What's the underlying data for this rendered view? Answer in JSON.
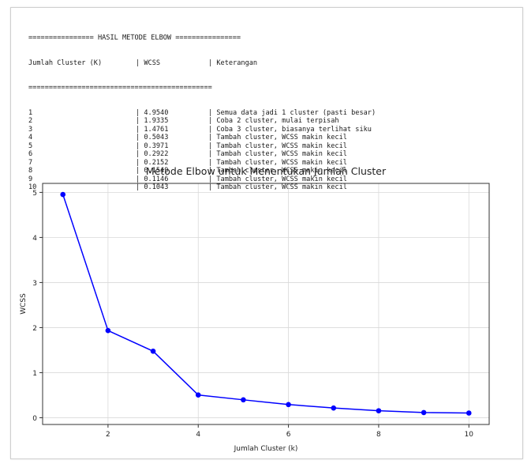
{
  "console": {
    "banner": "================ HASIL METODE ELBOW ================",
    "header": {
      "k": "Jumlah Cluster (K)",
      "wcss": "WCSS",
      "ket": "Keterangan"
    },
    "rule": "=============================================",
    "rows": [
      {
        "k": "1",
        "wcss": "4.9540",
        "ket": "Semua data jadi 1 cluster (pasti besar)"
      },
      {
        "k": "2",
        "wcss": "1.9335",
        "ket": "Coba 2 cluster, mulai terpisah"
      },
      {
        "k": "3",
        "wcss": "1.4761",
        "ket": "Coba 3 cluster, biasanya terlihat siku"
      },
      {
        "k": "4",
        "wcss": "0.5043",
        "ket": "Tambah cluster, WCSS makin kecil"
      },
      {
        "k": "5",
        "wcss": "0.3971",
        "ket": "Tambah cluster, WCSS makin kecil"
      },
      {
        "k": "6",
        "wcss": "0.2922",
        "ket": "Tambah cluster, WCSS makin kecil"
      },
      {
        "k": "7",
        "wcss": "0.2152",
        "ket": "Tambah cluster, WCSS makin kecil"
      },
      {
        "k": "8",
        "wcss": "0.1549",
        "ket": "Tambah cluster, WCSS makin kecil"
      },
      {
        "k": "9",
        "wcss": "0.1146",
        "ket": "Tambah cluster, WCSS makin kecil"
      },
      {
        "k": "10",
        "wcss": "0.1043",
        "ket": "Tambah cluster, WCSS makin kecil"
      }
    ]
  },
  "chart_data": {
    "type": "line",
    "title": "Metode Elbow untuk Menentukan Jumlah Cluster",
    "xlabel": "Jumlah Cluster (k)",
    "ylabel": "WCSS",
    "x": [
      1,
      2,
      3,
      4,
      5,
      6,
      7,
      8,
      9,
      10
    ],
    "series": [
      {
        "values": [
          4.954,
          1.9335,
          1.4761,
          0.5043,
          0.3971,
          0.2922,
          0.2152,
          0.1549,
          0.1146,
          0.1043
        ]
      }
    ],
    "xticks": [
      2,
      4,
      6,
      8,
      10
    ],
    "yticks": [
      0,
      1,
      2,
      3,
      4,
      5
    ],
    "xlim": [
      0.55,
      10.45
    ],
    "ylim": [
      -0.15,
      5.2
    ],
    "grid": true,
    "line_color": "#0000ff",
    "marker": "circle"
  }
}
